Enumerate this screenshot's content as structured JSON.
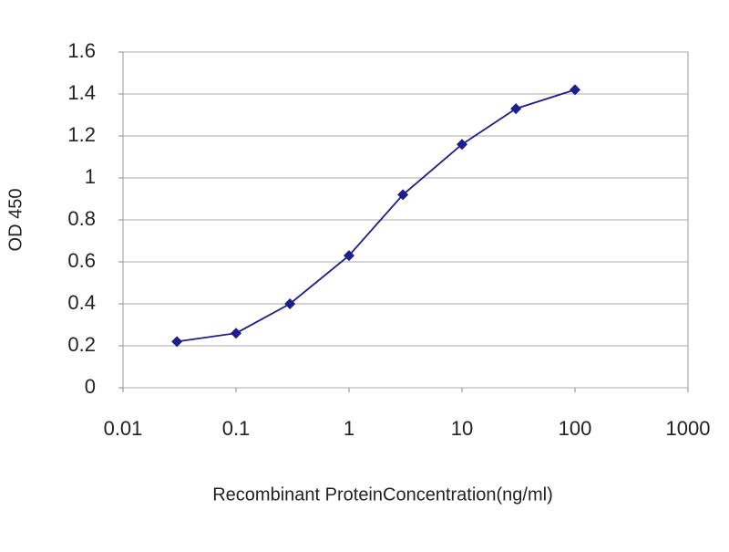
{
  "chart_data": {
    "type": "line",
    "x_label": "Recombinant ProteinConcentration(ng/ml)",
    "y_label": "OD 450",
    "x_scale": "log",
    "x": [
      0.03,
      0.1,
      0.3,
      1,
      3,
      10,
      30,
      100
    ],
    "series": [
      {
        "color": "#1e1e8c",
        "values": [
          0.22,
          0.26,
          0.4,
          0.63,
          0.92,
          1.16,
          1.33,
          1.42
        ]
      }
    ],
    "xlim": [
      0.01,
      1000
    ],
    "xticks": [
      0.01,
      0.1,
      1,
      10,
      100,
      1000
    ],
    "ylim": [
      0,
      1.6
    ],
    "yticks": [
      0,
      0.2,
      0.4,
      0.6,
      0.8,
      1,
      1.2,
      1.4,
      1.6
    ],
    "grid": true
  }
}
